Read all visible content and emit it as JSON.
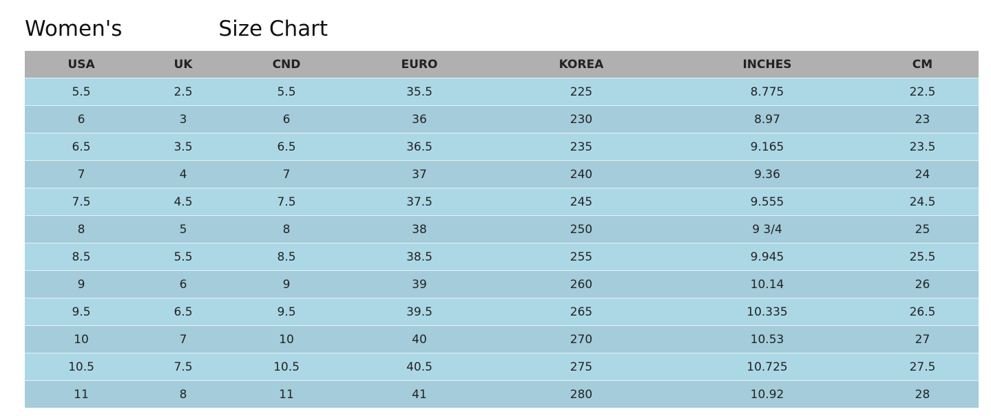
{
  "title": {
    "prefix": "Women's",
    "suffix": "Size Chart"
  },
  "colors": {
    "header_bg": "#b0b0b0",
    "row_light": "#acd8e6",
    "row_dark": "#a4ccda"
  },
  "headers": [
    "USA",
    "UK",
    "CND",
    "EURO",
    "KOREA",
    "INCHES",
    "CM"
  ],
  "rows": [
    [
      "5.5",
      "2.5",
      "5.5",
      "35.5",
      "225",
      "8.775",
      "22.5"
    ],
    [
      "6",
      "3",
      "6",
      "36",
      "230",
      "8.97",
      "23"
    ],
    [
      "6.5",
      "3.5",
      "6.5",
      "36.5",
      "235",
      "9.165",
      "23.5"
    ],
    [
      "7",
      "4",
      "7",
      "37",
      "240",
      "9.36",
      "24"
    ],
    [
      "7.5",
      "4.5",
      "7.5",
      "37.5",
      "245",
      "9.555",
      "24.5"
    ],
    [
      "8",
      "5",
      "8",
      "38",
      "250",
      "9 3/4",
      "25"
    ],
    [
      "8.5",
      "5.5",
      "8.5",
      "38.5",
      "255",
      "9.945",
      "25.5"
    ],
    [
      "9",
      "6",
      "9",
      "39",
      "260",
      "10.14",
      "26"
    ],
    [
      "9.5",
      "6.5",
      "9.5",
      "39.5",
      "265",
      "10.335",
      "26.5"
    ],
    [
      "10",
      "7",
      "10",
      "40",
      "270",
      "10.53",
      "27"
    ],
    [
      "10.5",
      "7.5",
      "10.5",
      "40.5",
      "275",
      "10.725",
      "27.5"
    ],
    [
      "11",
      "8",
      "11",
      "41",
      "280",
      "10.92",
      "28"
    ]
  ]
}
